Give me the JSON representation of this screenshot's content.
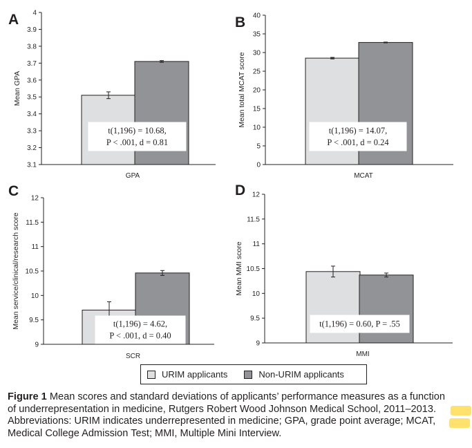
{
  "colors": {
    "urim": "#dedfe0",
    "nonurim": "#929396",
    "outline": "#231f20",
    "highlight": "#ffe066"
  },
  "chart_data": [
    {
      "panel": "A",
      "type": "bar",
      "categories": [
        "GPA"
      ],
      "xlabel": "GPA",
      "ylabel": "Mean GPA",
      "ylim": [
        3.1,
        4
      ],
      "yticks": [
        "3.1",
        "3.2",
        "3.3",
        "3.4",
        "3.5",
        "3.6",
        "3.7",
        "3.8",
        "3.9",
        "4"
      ],
      "series": [
        {
          "name": "URIM applicants",
          "values": [
            3.51
          ],
          "error": [
            0.02
          ]
        },
        {
          "name": "Non-URIM applicants",
          "values": [
            3.71
          ],
          "error": [
            0.005
          ]
        }
      ],
      "annotation": [
        "t(1,196) = 10.68,",
        "P < .001, d = 0.81"
      ]
    },
    {
      "panel": "B",
      "type": "bar",
      "categories": [
        "MCAT"
      ],
      "xlabel": "MCAT",
      "ylabel": "Mean total MCAT score",
      "ylim": [
        0,
        40
      ],
      "yticks": [
        "0",
        "5",
        "10",
        "15",
        "20",
        "25",
        "30",
        "35",
        "40"
      ],
      "series": [
        {
          "name": "URIM applicants",
          "values": [
            28.5
          ],
          "error": [
            0.2
          ]
        },
        {
          "name": "Non-URIM applicants",
          "values": [
            32.7
          ],
          "error": [
            0.1
          ]
        }
      ],
      "annotation": [
        "t(1,196) = 14.07,",
        "P < .001, d = 0.24"
      ]
    },
    {
      "panel": "C",
      "type": "bar",
      "categories": [
        "SCR"
      ],
      "xlabel": "SCR",
      "ylabel": "Mean service/clinical/research score",
      "ylim": [
        9,
        12
      ],
      "yticks": [
        "9",
        "9.5",
        "10",
        "10.5",
        "11",
        "11.5",
        "12"
      ],
      "series": [
        {
          "name": "URIM applicants",
          "values": [
            9.7
          ],
          "error": [
            0.17
          ]
        },
        {
          "name": "Non-URIM applicants",
          "values": [
            10.46
          ],
          "error": [
            0.05
          ]
        }
      ],
      "annotation": [
        "t(1,196) = 4.62,",
        "P < .001,  d = 0.40"
      ]
    },
    {
      "panel": "D",
      "type": "bar",
      "categories": [
        "MMI"
      ],
      "xlabel": "MMI",
      "ylabel": "Mean MMI score",
      "ylim": [
        9,
        12
      ],
      "yticks": [
        "9",
        "9.5",
        "10",
        "10.5",
        "11",
        "11.5",
        "12"
      ],
      "series": [
        {
          "name": "URIM applicants",
          "values": [
            10.44
          ],
          "error": [
            0.11
          ]
        },
        {
          "name": "Non-URIM applicants",
          "values": [
            10.37
          ],
          "error": [
            0.04
          ]
        }
      ],
      "annotation": [
        "t(1,196) = 0.60, P = .55"
      ]
    }
  ],
  "legend": {
    "urim_label": "URIM applicants",
    "nonurim_label": "Non-URIM applicants"
  },
  "caption": {
    "label": "Figure 1",
    "lines": [
      " Mean scores and standard deviations of applicants’ performance measures as a function",
      "of underrepresentation in medicine, Rutgers Robert Wood Johnson Medical School, 2011–2013.",
      "Abbreviations: URIM indicates underrepresented in medicine; GPA, grade point average; MCAT,",
      "Medical College Admission Test; MMI, Multiple Mini Interview."
    ]
  }
}
